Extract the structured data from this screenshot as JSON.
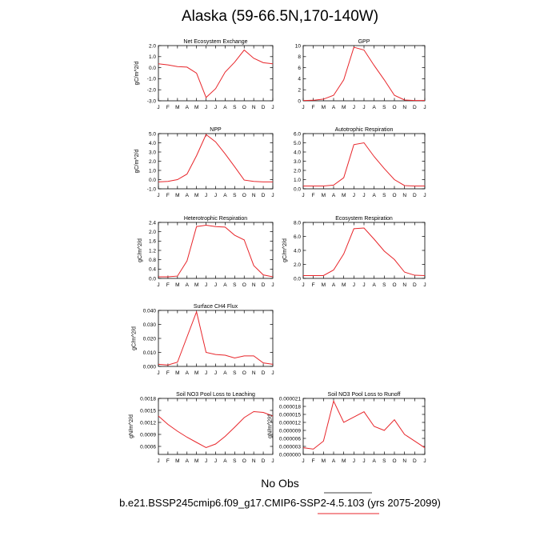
{
  "title": "Alaska (59-66.5N,170-140W)",
  "footer": {
    "no_obs_label": "No Obs",
    "case_label": "b.e21.BSSP245cmip6.f09_g17.CMIP6-SSP2-4.5.103 (yrs 2075-2099)"
  },
  "colors": {
    "series": "#e8262b",
    "axis": "#000000"
  },
  "chart_data": [
    {
      "type": "line",
      "title": "Net Ecosystem Exchange",
      "ylabel": "gC/m^2/d",
      "x": [
        "J",
        "F",
        "M",
        "A",
        "M",
        "J",
        "J",
        "A",
        "S",
        "O",
        "N",
        "D",
        "J"
      ],
      "ylim": [
        -3.0,
        2.0
      ],
      "yticks": [
        2.0,
        1.0,
        0.0,
        -1.0,
        -2.0,
        -3.0
      ],
      "ytick_labels": [
        "2.0",
        "1.0",
        "0.0",
        "-1.0",
        "-2.0",
        "-3.0"
      ],
      "series": [
        {
          "values": [
            0.35,
            0.25,
            0.1,
            0.05,
            -0.5,
            -2.7,
            -1.9,
            -0.4,
            0.5,
            1.6,
            0.85,
            0.45,
            0.35
          ]
        }
      ]
    },
    {
      "type": "line",
      "title": "GPP",
      "ylabel": "",
      "x": [
        "J",
        "F",
        "M",
        "A",
        "M",
        "J",
        "J",
        "A",
        "S",
        "O",
        "N",
        "D",
        "J"
      ],
      "ylim": [
        0,
        10
      ],
      "yticks": [
        10,
        8,
        6,
        4,
        2,
        0
      ],
      "ytick_labels": [
        "10",
        "8",
        "6",
        "4",
        "2",
        "0"
      ],
      "series": [
        {
          "values": [
            0.05,
            0.1,
            0.3,
            1.0,
            3.8,
            9.7,
            9.2,
            6.4,
            3.8,
            1.0,
            0.15,
            0.05,
            0.05
          ]
        }
      ]
    },
    {
      "type": "line",
      "title": "NPP",
      "ylabel": "gC/m^2/d",
      "x": [
        "J",
        "F",
        "M",
        "A",
        "M",
        "J",
        "J",
        "A",
        "S",
        "O",
        "N",
        "D",
        "J"
      ],
      "ylim": [
        -1.0,
        5.0
      ],
      "yticks": [
        5.0,
        4.0,
        3.0,
        2.0,
        1.0,
        0.0,
        -1.0
      ],
      "ytick_labels": [
        "5.0",
        "4.0",
        "3.0",
        "2.0",
        "1.0",
        "0.0",
        "-1.0"
      ],
      "series": [
        {
          "values": [
            -0.25,
            -0.2,
            0.0,
            0.6,
            2.6,
            4.9,
            4.1,
            2.8,
            1.4,
            -0.05,
            -0.2,
            -0.25,
            -0.25
          ]
        }
      ]
    },
    {
      "type": "line",
      "title": "Autotrophic Respiration",
      "ylabel": "",
      "x": [
        "J",
        "F",
        "M",
        "A",
        "M",
        "J",
        "J",
        "A",
        "S",
        "O",
        "N",
        "D",
        "J"
      ],
      "ylim": [
        0,
        6.0
      ],
      "yticks": [
        6.0,
        5.0,
        4.0,
        3.0,
        2.0,
        1.0,
        0.0
      ],
      "ytick_labels": [
        "6.0",
        "5.0",
        "4.0",
        "3.0",
        "2.0",
        "1.0",
        "0.0"
      ],
      "series": [
        {
          "values": [
            0.3,
            0.3,
            0.3,
            0.4,
            1.2,
            4.8,
            5.0,
            3.5,
            2.2,
            1.0,
            0.35,
            0.3,
            0.3
          ]
        }
      ]
    },
    {
      "type": "line",
      "title": "Heterotrophic Respiration",
      "ylabel": "gC/m^2/d",
      "x": [
        "J",
        "F",
        "M",
        "A",
        "M",
        "J",
        "J",
        "A",
        "S",
        "O",
        "N",
        "D",
        "J"
      ],
      "ylim": [
        0,
        2.4
      ],
      "yticks": [
        2.4,
        2.0,
        1.6,
        1.2,
        0.8,
        0.4,
        0.0
      ],
      "ytick_labels": [
        "2.4",
        "2.0",
        "1.6",
        "1.2",
        "0.8",
        "0.4",
        "0.0"
      ],
      "series": [
        {
          "values": [
            0.07,
            0.07,
            0.1,
            0.75,
            2.22,
            2.28,
            2.22,
            2.2,
            1.85,
            1.65,
            0.55,
            0.15,
            0.07
          ]
        }
      ]
    },
    {
      "type": "line",
      "title": "Ecosystem Respiration",
      "ylabel": "gC/m^2/d",
      "x": [
        "J",
        "F",
        "M",
        "A",
        "M",
        "J",
        "J",
        "A",
        "S",
        "O",
        "N",
        "D",
        "J"
      ],
      "ylim": [
        0,
        8.0
      ],
      "yticks": [
        8.0,
        6.0,
        4.0,
        2.0,
        0.0
      ],
      "ytick_labels": [
        "8.0",
        "6.0",
        "4.0",
        "2.0",
        "0.0"
      ],
      "series": [
        {
          "values": [
            0.4,
            0.4,
            0.4,
            1.2,
            3.5,
            7.1,
            7.2,
            5.6,
            3.9,
            2.7,
            0.9,
            0.45,
            0.4
          ]
        }
      ]
    },
    {
      "type": "line",
      "title": "Surface CH4 Flux",
      "ylabel": "gC/m^2/d",
      "x": [
        "J",
        "F",
        "M",
        "A",
        "M",
        "J",
        "J",
        "A",
        "S",
        "O",
        "N",
        "D",
        "J"
      ],
      "ylim": [
        0,
        0.04
      ],
      "yticks": [
        0.04,
        0.03,
        0.02,
        0.01,
        0.0
      ],
      "ytick_labels": [
        "0.040",
        "0.030",
        "0.020",
        "0.010",
        "0.000"
      ],
      "series": [
        {
          "values": [
            0.0015,
            0.001,
            0.003,
            0.021,
            0.039,
            0.01,
            0.0085,
            0.008,
            0.006,
            0.0075,
            0.0075,
            0.0025,
            0.0015
          ]
        }
      ]
    },
    {
      "type": "line",
      "title": "Soil NO3 Pool Loss to Leaching",
      "ylabel": "gN/m^2/d",
      "x": [
        "J",
        "F",
        "M",
        "A",
        "M",
        "J",
        "J",
        "A",
        "S",
        "O",
        "N",
        "D",
        "J"
      ],
      "ylim": [
        0.0004,
        0.0018
      ],
      "yticks": [
        0.0018,
        0.0015,
        0.0012,
        0.0009,
        0.0006
      ],
      "ytick_labels": [
        "0.0018",
        "0.0015",
        "0.0012",
        "0.0009",
        "0.0006"
      ],
      "series": [
        {
          "values": [
            0.00136,
            0.00115,
            0.00098,
            0.00083,
            0.0007,
            0.00057,
            0.00066,
            0.00085,
            0.00108,
            0.00132,
            0.00147,
            0.00145,
            0.00136
          ]
        }
      ]
    },
    {
      "type": "line",
      "title": "Soil NO3 Pool Loss to Runoff",
      "ylabel": "gN/m^2/d",
      "x": [
        "J",
        "F",
        "M",
        "A",
        "M",
        "J",
        "J",
        "A",
        "S",
        "O",
        "N",
        "D",
        "J"
      ],
      "ylim": [
        0,
        2.1e-05
      ],
      "yticks": [
        2.1e-05,
        1.8e-05,
        1.5e-05,
        1.2e-05,
        9e-06,
        6e-06,
        3e-06,
        0.0
      ],
      "ytick_labels": [
        "0.000021",
        "0.000018",
        "0.000015",
        "0.000012",
        "0.000009",
        "0.000006",
        "0.000003",
        "0.000000"
      ],
      "series": [
        {
          "values": [
            2.5e-06,
            2e-06,
            5e-06,
            2e-05,
            1.2e-05,
            1.4e-05,
            1.6e-05,
            1.05e-05,
            9e-06,
            1.3e-05,
            7.5e-06,
            5e-06,
            2.5e-06
          ]
        }
      ]
    }
  ]
}
